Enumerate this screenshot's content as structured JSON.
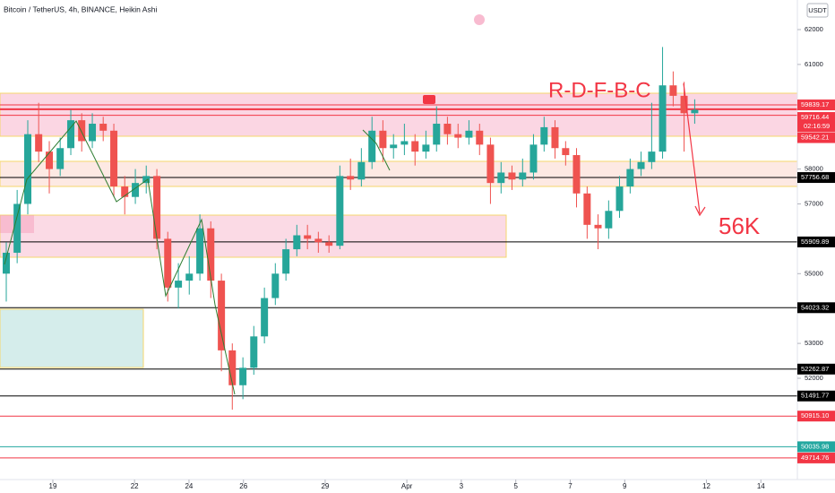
{
  "chart_data": {
    "type": "candlestick",
    "title": "Bitcoin / TetherUS, 4h, BINANCE, Heikin Ashi",
    "currency": "USDT",
    "timer": "02:16:59",
    "annotations": [
      "R-D-F-B-C",
      "56K"
    ],
    "up_color": "#26a69a",
    "down_color": "#ef5350",
    "xlim": [
      17.06,
      46.34
    ],
    "ylim": [
      49095,
      62848
    ],
    "yticks": [
      52000,
      53000,
      55000,
      57000,
      58000,
      61000,
      62000
    ],
    "xticks": [
      19,
      22,
      24,
      26,
      29,
      {
        "value": 32,
        "label": "Apr"
      },
      {
        "value": 34,
        "label": "3"
      },
      {
        "value": 36,
        "label": "5"
      },
      {
        "value": 38,
        "label": "7"
      },
      {
        "value": 40,
        "label": "9"
      },
      {
        "value": 43,
        "label": "12"
      },
      {
        "value": 45,
        "label": "14"
      }
    ],
    "levels": [
      {
        "label": "59839.17",
        "value": 59839.17,
        "color": "#f23645"
      },
      {
        "label": "59716.44",
        "value": 59716.44,
        "color": "#f23645"
      },
      {
        "label": "59542.21",
        "value": 59542.21,
        "color": "#f23645"
      },
      {
        "label": "57756.68",
        "value": 57756.68,
        "color": "#000000"
      },
      {
        "label": "55909.89",
        "value": 55909.89,
        "color": "#000000"
      },
      {
        "label": "54023.32",
        "value": 54023.32,
        "color": "#000000"
      },
      {
        "label": "52262.87",
        "value": 52262.87,
        "color": "#000000"
      },
      {
        "label": "51491.77",
        "value": 51491.77,
        "color": "#000000"
      },
      {
        "label": "50915.10",
        "value": 50915.1,
        "color": "#f23645"
      },
      {
        "label": "50035.98",
        "value": 50035.98,
        "color": "#22a7a0"
      },
      {
        "label": "49714.76",
        "value": 49714.76,
        "color": "#f23645"
      }
    ],
    "candles": [
      [
        17.29,
        55000,
        55900,
        54200,
        55600
      ],
      [
        17.69,
        55600,
        57400,
        55300,
        57000
      ],
      [
        18.08,
        57000,
        59400,
        56700,
        59000
      ],
      [
        18.48,
        59000,
        59900,
        58200,
        58500
      ],
      [
        18.87,
        58500,
        58800,
        57300,
        58000
      ],
      [
        19.27,
        58000,
        58900,
        57800,
        58600
      ],
      [
        19.66,
        58600,
        59700,
        58400,
        59400
      ],
      [
        20.06,
        59400,
        59600,
        58500,
        58800
      ],
      [
        20.45,
        58800,
        59600,
        58600,
        59300
      ],
      [
        20.85,
        59300,
        59500,
        58800,
        59100
      ],
      [
        21.24,
        59100,
        59300,
        57200,
        57500
      ],
      [
        21.64,
        57500,
        57800,
        56700,
        57200
      ],
      [
        22.03,
        57200,
        58000,
        57000,
        57600
      ],
      [
        22.43,
        57600,
        58100,
        57300,
        57800
      ],
      [
        22.82,
        57800,
        58000,
        55700,
        56000
      ],
      [
        23.22,
        56000,
        56200,
        54200,
        54600
      ],
      [
        23.61,
        54600,
        55300,
        54000,
        54800
      ],
      [
        24.01,
        54800,
        55500,
        54400,
        55000
      ],
      [
        24.4,
        55000,
        56700,
        54800,
        56300
      ],
      [
        24.8,
        56300,
        56500,
        54300,
        54800
      ],
      [
        25.19,
        54800,
        55000,
        52200,
        52800
      ],
      [
        25.59,
        52800,
        53000,
        51100,
        51800
      ],
      [
        25.98,
        51800,
        52600,
        51400,
        52300
      ],
      [
        26.38,
        52300,
        53500,
        52100,
        53200
      ],
      [
        26.77,
        53200,
        54600,
        53000,
        54300
      ],
      [
        27.17,
        54300,
        55300,
        54100,
        55000
      ],
      [
        27.56,
        55000,
        56000,
        54800,
        55700
      ],
      [
        27.96,
        55700,
        56400,
        55500,
        56100
      ],
      [
        28.35,
        56100,
        56400,
        55700,
        56000
      ],
      [
        28.75,
        56000,
        56200,
        55600,
        55900
      ],
      [
        29.14,
        55900,
        56100,
        55600,
        55800
      ],
      [
        29.54,
        55800,
        58100,
        55700,
        57800
      ],
      [
        29.93,
        57800,
        58300,
        57400,
        57700
      ],
      [
        30.33,
        57700,
        58600,
        57500,
        58200
      ],
      [
        30.72,
        58200,
        59500,
        58000,
        59100
      ],
      [
        31.12,
        59100,
        59400,
        58200,
        58600
      ],
      [
        31.51,
        58600,
        59000,
        58300,
        58700
      ],
      [
        31.91,
        58700,
        59300,
        58400,
        58800
      ],
      [
        32.3,
        58800,
        59000,
        58100,
        58500
      ],
      [
        32.7,
        58500,
        59100,
        58300,
        58700
      ],
      [
        33.09,
        58700,
        59800,
        58500,
        59300
      ],
      [
        33.49,
        59300,
        59500,
        58700,
        59000
      ],
      [
        33.88,
        59000,
        59300,
        58600,
        58900
      ],
      [
        34.28,
        58900,
        59400,
        58700,
        59100
      ],
      [
        34.67,
        59100,
        59300,
        58400,
        58700
      ],
      [
        35.07,
        58700,
        58900,
        57000,
        57600
      ],
      [
        35.46,
        57600,
        58200,
        57300,
        57900
      ],
      [
        35.86,
        57900,
        58100,
        57400,
        57700
      ],
      [
        36.25,
        57700,
        58300,
        57500,
        57900
      ],
      [
        36.65,
        57900,
        59000,
        57700,
        58700
      ],
      [
        37.04,
        58700,
        59500,
        58500,
        59200
      ],
      [
        37.44,
        59200,
        59400,
        58300,
        58600
      ],
      [
        37.83,
        58600,
        58800,
        58100,
        58400
      ],
      [
        38.23,
        58400,
        58600,
        56900,
        57300
      ],
      [
        38.62,
        57300,
        57500,
        56000,
        56400
      ],
      [
        39.02,
        56400,
        56700,
        55700,
        56300
      ],
      [
        39.41,
        56300,
        57100,
        56000,
        56800
      ],
      [
        39.81,
        56800,
        57800,
        56600,
        57500
      ],
      [
        40.2,
        57500,
        58300,
        57300,
        58000
      ],
      [
        40.6,
        58000,
        58500,
        57800,
        58200
      ],
      [
        40.99,
        58200,
        59900,
        58000,
        58500
      ],
      [
        41.39,
        58500,
        61500,
        58300,
        60400
      ],
      [
        41.78,
        60400,
        60800,
        59800,
        60100
      ],
      [
        42.18,
        60100,
        60500,
        58500,
        59600
      ],
      [
        42.57,
        59600,
        60000,
        59300,
        59700
      ]
    ]
  }
}
